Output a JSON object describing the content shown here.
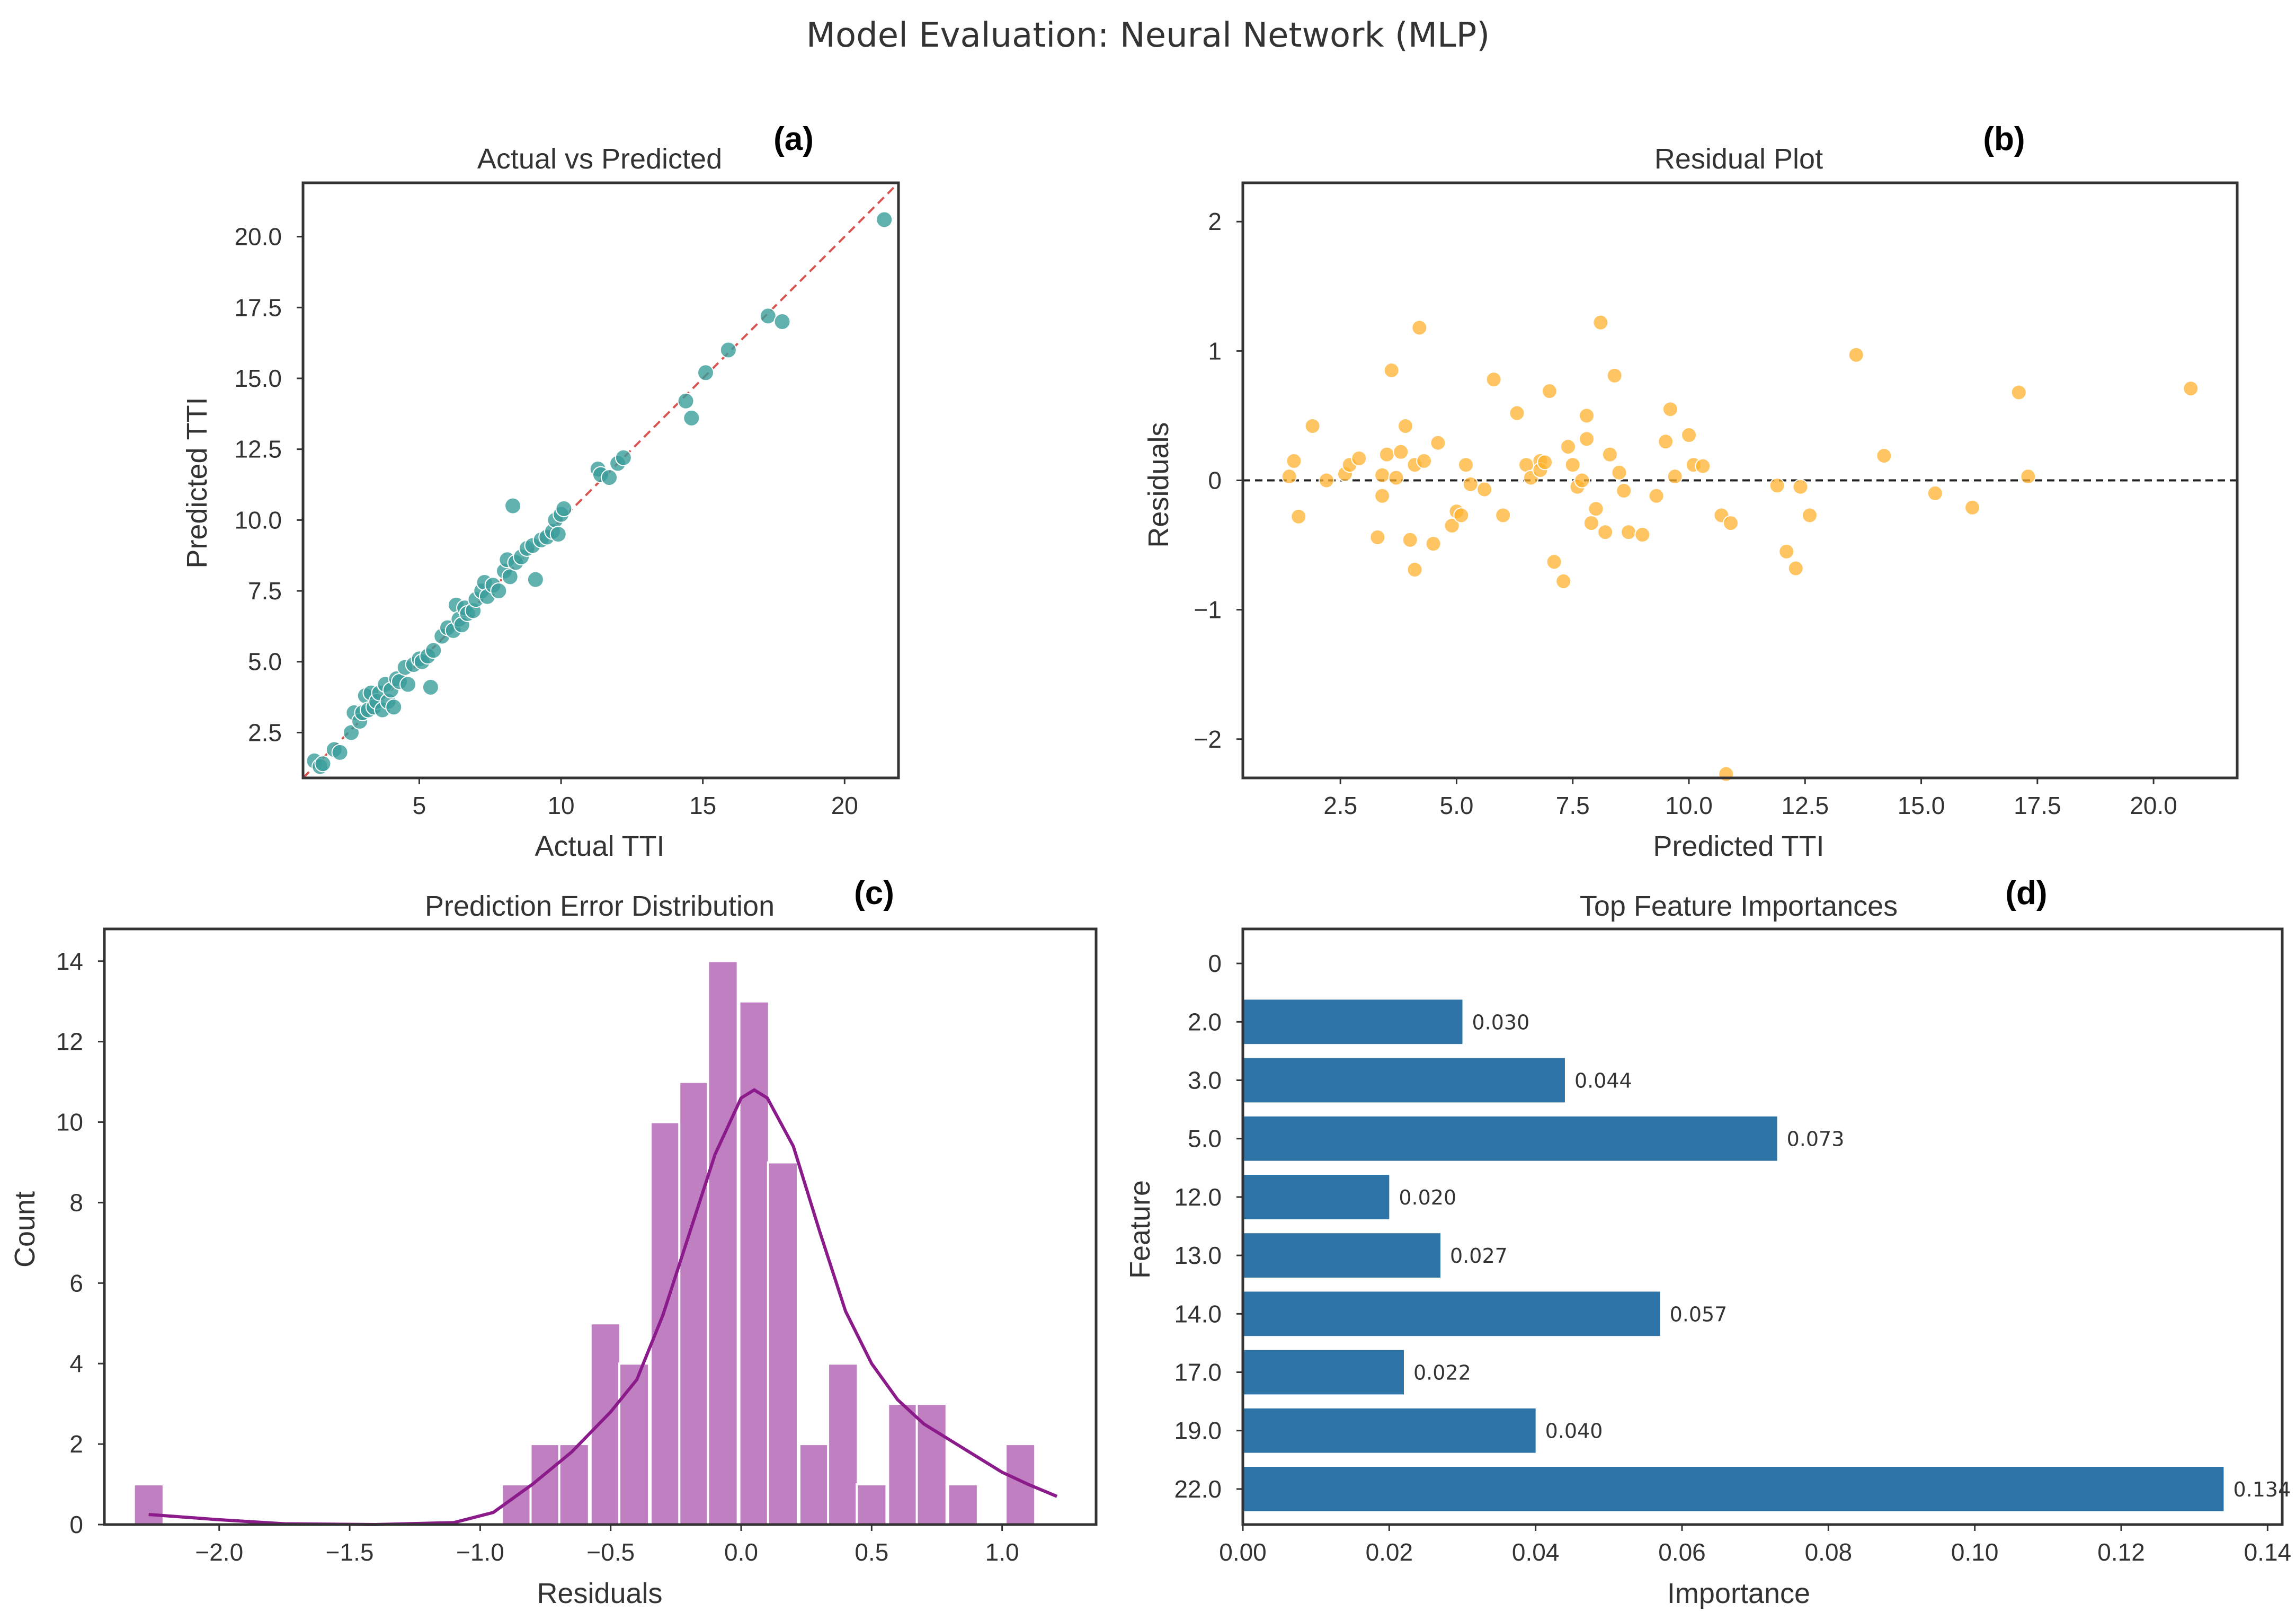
{
  "suptitle": "Model Evaluation: Neural Network (MLP)",
  "colors": {
    "teal": "#3a9e9b",
    "orange": "#ffb22e",
    "purple": "#c07fc0",
    "purple_line": "#8b1a8b",
    "blue": "#2e74a6",
    "red_dash": "#d9534f",
    "black": "#222222"
  },
  "chart_data": [
    {
      "panel": "(a)",
      "type": "scatter",
      "title": "Actual vs Predicted",
      "xlabel": "Actual TTI",
      "ylabel": "Predicted TTI",
      "xlim": [
        0.9,
        21.9
      ],
      "ylim": [
        0.9,
        21.9
      ],
      "xticks": [
        5,
        10,
        15,
        20
      ],
      "yticks": [
        2.5,
        5.0,
        7.5,
        10.0,
        12.5,
        15.0,
        17.5,
        20.0
      ],
      "xtick_labels": [
        "5",
        "10",
        "15",
        "20"
      ],
      "ytick_labels": [
        "2.5",
        "5.0",
        "7.5",
        "10.0",
        "12.5",
        "15.0",
        "17.5",
        "20.0"
      ],
      "reference_line": [
        [
          0.9,
          0.9
        ],
        [
          21.9,
          21.9
        ]
      ],
      "points": [
        [
          1.3,
          1.5
        ],
        [
          1.5,
          1.3
        ],
        [
          1.6,
          1.4
        ],
        [
          2.0,
          1.9
        ],
        [
          2.2,
          1.8
        ],
        [
          2.6,
          2.5
        ],
        [
          2.7,
          3.2
        ],
        [
          2.9,
          2.9
        ],
        [
          3.0,
          3.2
        ],
        [
          3.1,
          3.8
        ],
        [
          3.2,
          3.3
        ],
        [
          3.3,
          3.9
        ],
        [
          3.4,
          3.4
        ],
        [
          3.5,
          3.6
        ],
        [
          3.6,
          3.9
        ],
        [
          3.7,
          3.3
        ],
        [
          3.8,
          4.2
        ],
        [
          3.9,
          3.6
        ],
        [
          4.0,
          4.0
        ],
        [
          4.1,
          3.4
        ],
        [
          4.2,
          4.4
        ],
        [
          4.3,
          4.3
        ],
        [
          4.5,
          4.8
        ],
        [
          4.6,
          4.2
        ],
        [
          4.8,
          4.9
        ],
        [
          5.0,
          5.1
        ],
        [
          5.1,
          5.0
        ],
        [
          5.3,
          5.2
        ],
        [
          5.4,
          4.1
        ],
        [
          5.5,
          5.4
        ],
        [
          5.8,
          5.9
        ],
        [
          6.0,
          6.2
        ],
        [
          6.2,
          6.1
        ],
        [
          6.3,
          7.0
        ],
        [
          6.4,
          6.5
        ],
        [
          6.5,
          6.3
        ],
        [
          6.6,
          6.9
        ],
        [
          6.7,
          6.7
        ],
        [
          6.9,
          6.8
        ],
        [
          7.0,
          7.2
        ],
        [
          7.2,
          7.5
        ],
        [
          7.3,
          7.8
        ],
        [
          7.4,
          7.3
        ],
        [
          7.6,
          7.7
        ],
        [
          7.8,
          7.5
        ],
        [
          8.0,
          8.2
        ],
        [
          8.1,
          8.6
        ],
        [
          8.2,
          8.0
        ],
        [
          8.3,
          10.5
        ],
        [
          8.4,
          8.5
        ],
        [
          8.6,
          8.7
        ],
        [
          8.8,
          9.0
        ],
        [
          9.0,
          9.1
        ],
        [
          9.1,
          7.9
        ],
        [
          9.3,
          9.3
        ],
        [
          9.5,
          9.4
        ],
        [
          9.7,
          9.6
        ],
        [
          9.8,
          10.0
        ],
        [
          9.9,
          9.5
        ],
        [
          10.0,
          10.2
        ],
        [
          10.1,
          10.4
        ],
        [
          11.3,
          11.8
        ],
        [
          11.4,
          11.6
        ],
        [
          11.7,
          11.5
        ],
        [
          12.0,
          12.0
        ],
        [
          12.2,
          12.2
        ],
        [
          14.4,
          14.2
        ],
        [
          14.6,
          13.6
        ],
        [
          15.1,
          15.2
        ],
        [
          15.9,
          16.0
        ],
        [
          17.3,
          17.2
        ],
        [
          17.8,
          17.0
        ],
        [
          21.4,
          20.6
        ]
      ]
    },
    {
      "panel": "(b)",
      "type": "scatter",
      "title": "Residual Plot",
      "xlabel": "Predicted TTI",
      "ylabel": "Residuals",
      "xlim": [
        0.4,
        21.8
      ],
      "ylim": [
        -2.3,
        2.3
      ],
      "xticks": [
        2.5,
        5.0,
        7.5,
        10.0,
        12.5,
        15.0,
        17.5,
        20.0
      ],
      "yticks": [
        -2,
        -1,
        0,
        1,
        2
      ],
      "xtick_labels": [
        "2.5",
        "5.0",
        "7.5",
        "10.0",
        "12.5",
        "15.0",
        "17.5",
        "20.0"
      ],
      "ytick_labels": [
        "−2",
        "−1",
        "0",
        "1",
        "2"
      ],
      "hline": 0,
      "points": [
        [
          1.4,
          0.03
        ],
        [
          1.5,
          0.15
        ],
        [
          1.6,
          -0.28
        ],
        [
          1.9,
          0.42
        ],
        [
          2.2,
          0.0
        ],
        [
          2.6,
          0.05
        ],
        [
          2.7,
          0.12
        ],
        [
          2.9,
          0.17
        ],
        [
          3.3,
          -0.44
        ],
        [
          3.4,
          0.04
        ],
        [
          3.4,
          -0.12
        ],
        [
          3.5,
          0.2
        ],
        [
          3.6,
          0.85
        ],
        [
          3.7,
          0.02
        ],
        [
          3.8,
          0.22
        ],
        [
          3.9,
          0.42
        ],
        [
          4.0,
          -0.46
        ],
        [
          4.1,
          -0.69
        ],
        [
          4.1,
          0.12
        ],
        [
          4.2,
          1.18
        ],
        [
          4.3,
          0.15
        ],
        [
          4.5,
          -0.49
        ],
        [
          4.6,
          0.29
        ],
        [
          4.9,
          -0.35
        ],
        [
          5.0,
          -0.24
        ],
        [
          5.1,
          -0.27
        ],
        [
          5.2,
          0.12
        ],
        [
          5.3,
          -0.03
        ],
        [
          5.6,
          -0.07
        ],
        [
          5.8,
          0.78
        ],
        [
          6.0,
          -0.27
        ],
        [
          6.3,
          0.52
        ],
        [
          6.5,
          0.12
        ],
        [
          6.6,
          0.02
        ],
        [
          6.8,
          0.15
        ],
        [
          6.8,
          0.08
        ],
        [
          6.9,
          0.14
        ],
        [
          7.0,
          0.69
        ],
        [
          7.1,
          -0.63
        ],
        [
          7.3,
          -0.78
        ],
        [
          7.4,
          0.26
        ],
        [
          7.5,
          0.12
        ],
        [
          7.6,
          -0.05
        ],
        [
          7.7,
          0.0
        ],
        [
          7.8,
          0.5
        ],
        [
          7.8,
          0.32
        ],
        [
          7.9,
          -0.33
        ],
        [
          8.0,
          -0.22
        ],
        [
          8.1,
          1.22
        ],
        [
          8.2,
          -0.4
        ],
        [
          8.3,
          0.2
        ],
        [
          8.4,
          0.81
        ],
        [
          8.5,
          0.06
        ],
        [
          8.6,
          -0.08
        ],
        [
          8.7,
          -0.4
        ],
        [
          9.0,
          -0.42
        ],
        [
          9.3,
          -0.12
        ],
        [
          9.5,
          0.3
        ],
        [
          9.6,
          0.55
        ],
        [
          9.7,
          0.03
        ],
        [
          10.0,
          0.35
        ],
        [
          10.1,
          0.12
        ],
        [
          10.3,
          0.11
        ],
        [
          10.7,
          -0.27
        ],
        [
          10.8,
          -2.27
        ],
        [
          10.9,
          -0.33
        ],
        [
          11.9,
          -0.04
        ],
        [
          12.1,
          -0.55
        ],
        [
          12.3,
          -0.68
        ],
        [
          12.4,
          -0.05
        ],
        [
          12.6,
          -0.27
        ],
        [
          13.6,
          0.97
        ],
        [
          14.2,
          0.19
        ],
        [
          15.3,
          -0.1
        ],
        [
          16.1,
          -0.21
        ],
        [
          17.1,
          0.68
        ],
        [
          17.3,
          0.03
        ],
        [
          20.8,
          0.71
        ]
      ]
    },
    {
      "panel": "(c)",
      "type": "bar",
      "title": "Prediction Error Distribution",
      "xlabel": "Residuals",
      "ylabel": "Count",
      "xlim": [
        -2.44,
        1.36
      ],
      "ylim": [
        0,
        14.8
      ],
      "xticks": [
        -2.0,
        -1.5,
        -1.0,
        -0.5,
        0.0,
        0.5,
        1.0
      ],
      "yticks": [
        0,
        2,
        4,
        6,
        8,
        10,
        12,
        14
      ],
      "xtick_labels": [
        "−2.0",
        "−1.5",
        "−1.0",
        "−0.5",
        "0.0",
        "0.5",
        "1.0"
      ],
      "ytick_labels": [
        "0",
        "2",
        "4",
        "6",
        "8",
        "10",
        "12",
        "14"
      ],
      "bin_width": 0.114,
      "bins": [
        [
          -2.27,
          1
        ],
        [
          -0.86,
          1
        ],
        [
          -0.75,
          2
        ],
        [
          -0.64,
          2
        ],
        [
          -0.52,
          5
        ],
        [
          -0.41,
          4
        ],
        [
          -0.29,
          10
        ],
        [
          -0.18,
          11
        ],
        [
          -0.07,
          14
        ],
        [
          0.05,
          13
        ],
        [
          0.16,
          9
        ],
        [
          0.28,
          2
        ],
        [
          0.39,
          4
        ],
        [
          0.5,
          1
        ],
        [
          0.62,
          3
        ],
        [
          0.73,
          3
        ],
        [
          0.85,
          1
        ],
        [
          1.07,
          2
        ]
      ],
      "kde": [
        [
          -2.27,
          0.25
        ],
        [
          -2.0,
          0.12
        ],
        [
          -1.75,
          0.02
        ],
        [
          -1.4,
          0.0
        ],
        [
          -1.1,
          0.05
        ],
        [
          -0.95,
          0.3
        ],
        [
          -0.8,
          1.0
        ],
        [
          -0.65,
          1.8
        ],
        [
          -0.5,
          2.8
        ],
        [
          -0.4,
          3.6
        ],
        [
          -0.3,
          5.2
        ],
        [
          -0.2,
          7.2
        ],
        [
          -0.1,
          9.2
        ],
        [
          0.0,
          10.6
        ],
        [
          0.05,
          10.8
        ],
        [
          0.1,
          10.6
        ],
        [
          0.2,
          9.4
        ],
        [
          0.3,
          7.3
        ],
        [
          0.4,
          5.3
        ],
        [
          0.5,
          4.0
        ],
        [
          0.6,
          3.1
        ],
        [
          0.7,
          2.5
        ],
        [
          0.8,
          2.1
        ],
        [
          0.9,
          1.7
        ],
        [
          1.0,
          1.3
        ],
        [
          1.1,
          1.0
        ],
        [
          1.21,
          0.7
        ]
      ]
    },
    {
      "panel": "(d)",
      "type": "bar",
      "orientation": "horizontal",
      "title": "Top Feature Importances",
      "xlabel": "Importance",
      "ylabel": "Feature",
      "xlim": [
        0,
        0.142
      ],
      "xticks": [
        0.0,
        0.02,
        0.04,
        0.06,
        0.08,
        0.1,
        0.12,
        0.14
      ],
      "xtick_labels": [
        "0.00",
        "0.02",
        "0.04",
        "0.06",
        "0.08",
        "0.10",
        "0.12",
        "0.14"
      ],
      "categories": [
        "0",
        "2.0",
        "3.0",
        "5.0",
        "12.0",
        "13.0",
        "14.0",
        "17.0",
        "19.0",
        "22.0"
      ],
      "values": [
        null,
        0.03,
        0.044,
        0.073,
        0.02,
        0.027,
        0.057,
        0.022,
        0.04,
        0.134
      ],
      "value_labels": [
        "",
        "0.030",
        "0.044",
        "0.073",
        "0.020",
        "0.027",
        "0.057",
        "0.022",
        "0.040",
        "0.134"
      ]
    }
  ]
}
